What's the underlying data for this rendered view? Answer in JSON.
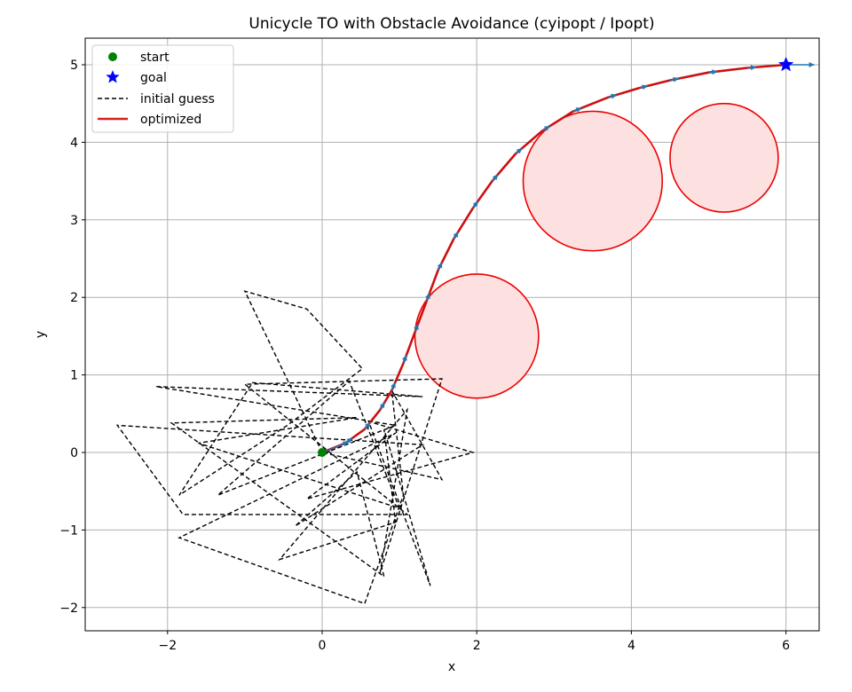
{
  "chart_data": {
    "type": "line",
    "title": "Unicycle TO with Obstacle Avoidance (cyipopt / Ipopt)",
    "xlabel": "x",
    "ylabel": "y",
    "xlim": [
      -3.1,
      6.4
    ],
    "ylim": [
      -2.3,
      5.33
    ],
    "xticks": [
      -2,
      0,
      2,
      4,
      6
    ],
    "yticks": [
      -2,
      -1,
      0,
      1,
      2,
      3,
      4,
      5
    ],
    "xtick_labels": [
      "−2",
      "0",
      "2",
      "4",
      "6"
    ],
    "ytick_labels": [
      "−2",
      "−1",
      "0",
      "1",
      "2",
      "3",
      "4",
      "5"
    ],
    "grid": true,
    "legend_position": "upper left",
    "legend": [
      {
        "label": "start",
        "marker": "circle",
        "color": "#008000"
      },
      {
        "label": "goal",
        "marker": "star",
        "color": "#0000ff"
      },
      {
        "label": "initial guess",
        "style": "dashed",
        "color": "#000000"
      },
      {
        "label": "optimized",
        "style": "solid",
        "color": "#d62020"
      }
    ],
    "start": [
      0,
      0
    ],
    "goal": [
      6,
      5
    ],
    "obstacles": [
      {
        "cx": 2.0,
        "cy": 1.5,
        "r": 0.8
      },
      {
        "cx": 3.5,
        "cy": 3.5,
        "r": 0.9
      },
      {
        "cx": 5.2,
        "cy": 3.8,
        "r": 0.7
      }
    ],
    "series": [
      {
        "name": "optimized",
        "points": [
          [
            0,
            0
          ],
          [
            0.3,
            0.12
          ],
          [
            0.55,
            0.3
          ],
          [
            0.75,
            0.55
          ],
          [
            0.9,
            0.8
          ],
          [
            1.05,
            1.15
          ],
          [
            1.2,
            1.55
          ],
          [
            1.35,
            1.95
          ],
          [
            1.5,
            2.35
          ],
          [
            1.7,
            2.75
          ],
          [
            1.95,
            3.15
          ],
          [
            2.2,
            3.5
          ],
          [
            2.5,
            3.85
          ],
          [
            2.85,
            4.15
          ],
          [
            3.25,
            4.4
          ],
          [
            3.7,
            4.58
          ],
          [
            4.1,
            4.7
          ],
          [
            4.5,
            4.8
          ],
          [
            5.0,
            4.9
          ],
          [
            5.5,
            4.96
          ],
          [
            6.0,
            5.0
          ]
        ]
      },
      {
        "name": "initial guess",
        "points": [
          [
            0,
            0
          ],
          [
            -1.0,
            2.08
          ],
          [
            -0.2,
            1.85
          ],
          [
            0.52,
            1.08
          ],
          [
            -0.45,
            0.35
          ],
          [
            -1.85,
            -0.55
          ],
          [
            -0.9,
            0.9
          ],
          [
            1.3,
            0.72
          ],
          [
            -2.15,
            0.85
          ],
          [
            0.95,
            0.35
          ],
          [
            -1.35,
            -0.55
          ],
          [
            0.35,
            0.92
          ],
          [
            1.0,
            -0.72
          ],
          [
            -1.6,
            0.12
          ],
          [
            0.45,
            0.45
          ],
          [
            -1.95,
            0.38
          ],
          [
            0.8,
            -1.6
          ],
          [
            0.45,
            -0.25
          ],
          [
            -0.35,
            -0.95
          ],
          [
            1.3,
            0.1
          ],
          [
            -2.65,
            0.35
          ],
          [
            -1.8,
            -0.8
          ],
          [
            1.1,
            -0.8
          ],
          [
            -1.0,
            0.88
          ],
          [
            1.55,
            0.95
          ],
          [
            0.75,
            -1.55
          ],
          [
            1.1,
            0.55
          ],
          [
            -0.55,
            -1.38
          ],
          [
            0.95,
            -0.9
          ],
          [
            0.8,
            0.3
          ],
          [
            1.4,
            -1.72
          ],
          [
            0.6,
            0.4
          ],
          [
            1.95,
            0.0
          ],
          [
            -0.2,
            -0.6
          ],
          [
            0.95,
            0.25
          ],
          [
            -1.85,
            -1.1
          ],
          [
            0.55,
            -1.95
          ],
          [
            1.05,
            -0.55
          ],
          [
            0.9,
            0.8
          ],
          [
            1.55,
            -0.35
          ],
          [
            0,
            0
          ]
        ]
      }
    ]
  }
}
